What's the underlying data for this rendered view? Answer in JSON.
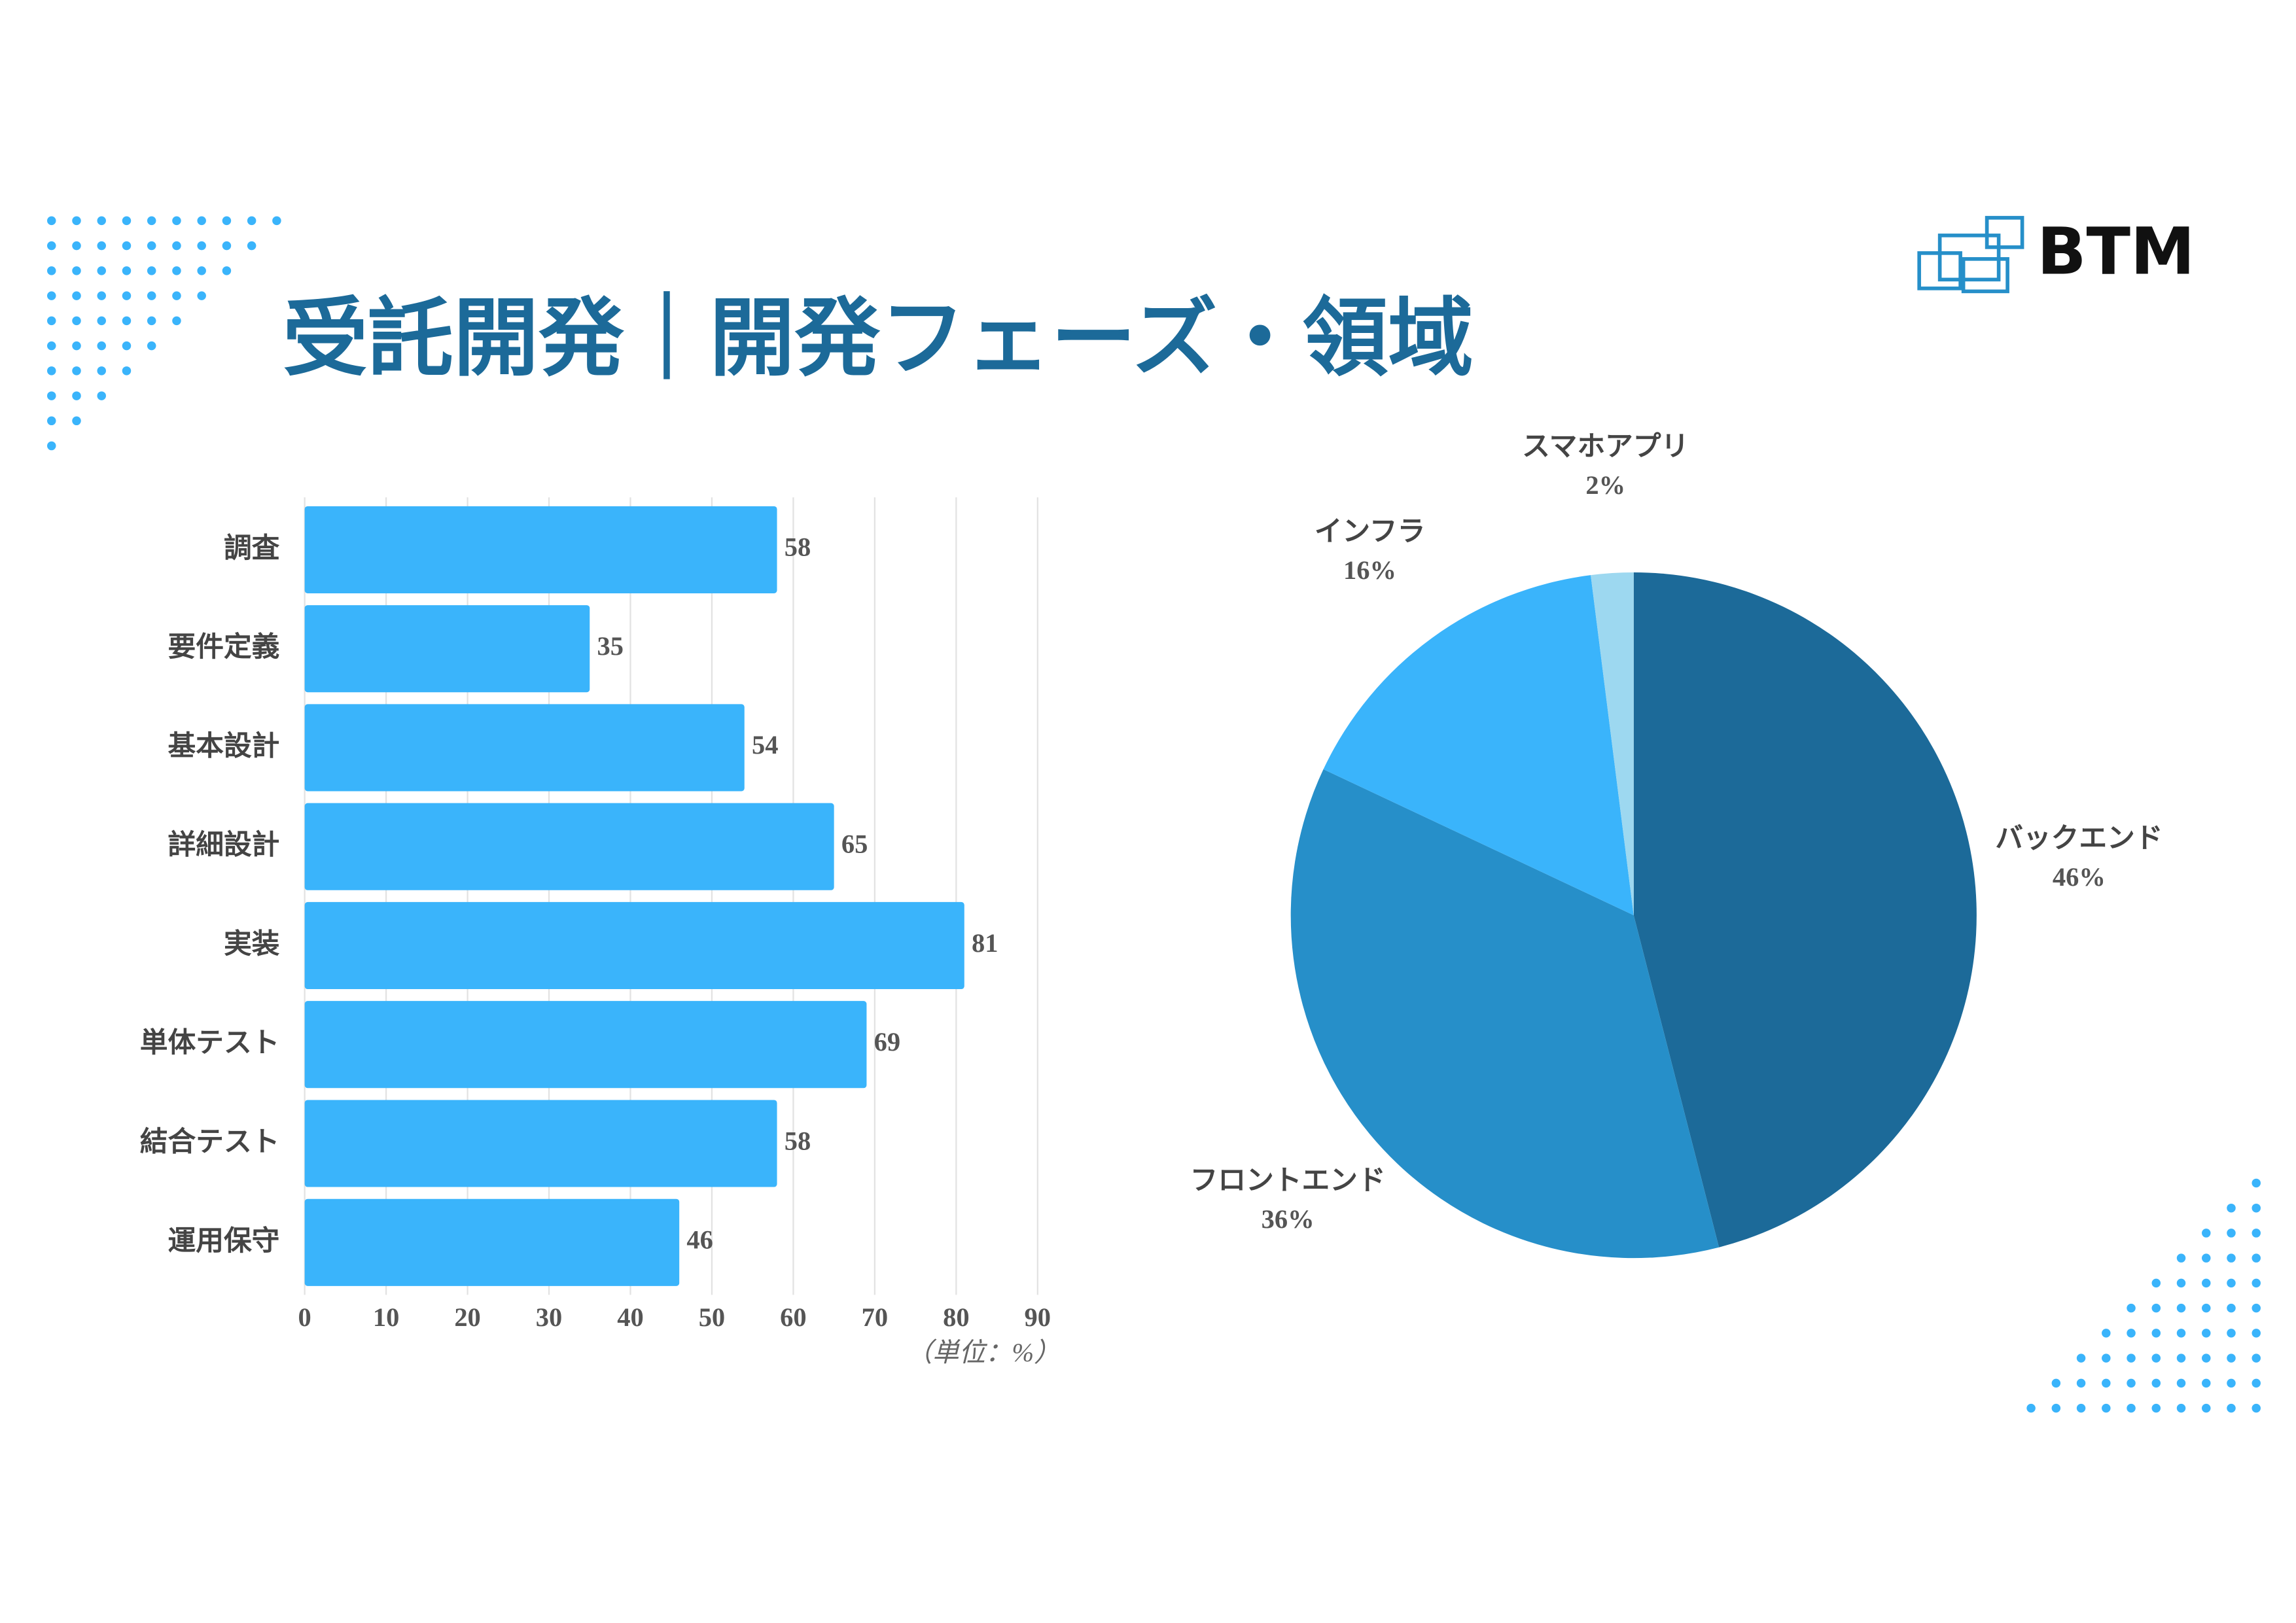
{
  "title": "受託開発｜開発フェーズ・領域",
  "logo": "BTM",
  "chart_data": [
    {
      "type": "bar",
      "orientation": "horizontal",
      "categories": [
        "調査",
        "要件定義",
        "基本設計",
        "詳細設計",
        "実装",
        "単体テスト",
        "結合テスト",
        "運用保守"
      ],
      "values": [
        58,
        35,
        54,
        65,
        81,
        69,
        58,
        46
      ],
      "color": "#3ab4fb",
      "xlim": [
        0,
        90
      ],
      "xticks": [
        0,
        10,
        20,
        30,
        40,
        50,
        60,
        70,
        80,
        90
      ],
      "grid": true,
      "unit_note": "（単位：%）"
    },
    {
      "type": "pie",
      "categories": [
        "バックエンド",
        "フロントエンド",
        "インフラ",
        "スマホアプリ"
      ],
      "values": [
        46,
        36,
        16,
        2
      ],
      "value_labels": [
        "46%",
        "36%",
        "16%",
        "2%"
      ],
      "colors": [
        "#1c6a99",
        "#268fc9",
        "#3ab4fb",
        "#9dd8f0"
      ]
    }
  ]
}
